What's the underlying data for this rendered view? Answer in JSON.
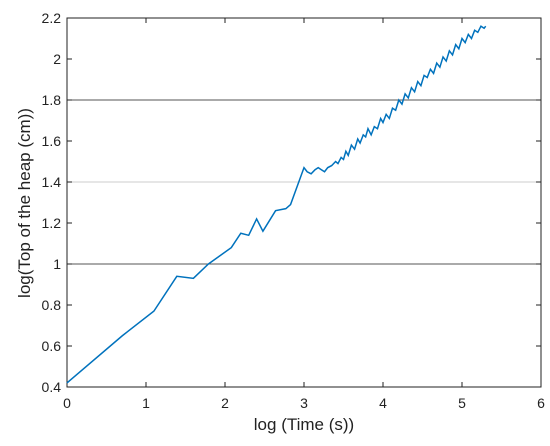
{
  "chart_data": {
    "type": "line",
    "x_label": "log (Time (s))",
    "y_label": "log(Top of the heap (cm))",
    "series": [
      {
        "color": "#0072bd",
        "x": [
          0,
          0.7,
          1.1,
          1.39,
          1.6,
          1.79,
          2.08,
          2.2,
          2.3,
          2.4,
          2.48,
          2.64,
          2.77,
          2.83,
          3.0,
          3.04,
          3.09,
          3.14,
          3.18,
          3.22,
          3.26,
          3.3,
          3.35,
          3.4,
          3.43,
          3.47,
          3.5,
          3.53,
          3.56,
          3.6,
          3.64,
          3.68,
          3.71,
          3.75,
          3.78,
          3.81,
          3.85,
          3.89,
          3.93,
          3.97,
          4.0,
          4.04,
          4.08,
          4.12,
          4.16,
          4.2,
          4.24,
          4.28,
          4.32,
          4.36,
          4.4,
          4.44,
          4.48,
          4.52,
          4.56,
          4.6,
          4.64,
          4.68,
          4.72,
          4.76,
          4.8,
          4.84,
          4.88,
          4.92,
          4.96,
          5.0,
          5.04,
          5.08,
          5.12,
          5.16,
          5.2,
          5.24,
          5.28,
          5.3
        ],
        "values": [
          0.42,
          0.65,
          0.77,
          0.94,
          0.93,
          1.0,
          1.08,
          1.15,
          1.14,
          1.22,
          1.16,
          1.26,
          1.27,
          1.29,
          1.47,
          1.45,
          1.44,
          1.46,
          1.47,
          1.46,
          1.45,
          1.47,
          1.48,
          1.5,
          1.49,
          1.52,
          1.51,
          1.55,
          1.53,
          1.58,
          1.56,
          1.61,
          1.59,
          1.63,
          1.62,
          1.66,
          1.63,
          1.67,
          1.66,
          1.71,
          1.69,
          1.73,
          1.71,
          1.76,
          1.75,
          1.8,
          1.78,
          1.83,
          1.81,
          1.86,
          1.84,
          1.89,
          1.87,
          1.92,
          1.91,
          1.95,
          1.93,
          1.98,
          1.96,
          2.01,
          1.99,
          2.04,
          2.02,
          2.07,
          2.05,
          2.1,
          2.08,
          2.12,
          2.1,
          2.14,
          2.13,
          2.16,
          2.15,
          2.16
        ]
      }
    ],
    "hlines": [
      {
        "value": 1.8,
        "color": "#555555"
      },
      {
        "value": 1.4,
        "color": "#cccccc"
      },
      {
        "value": 1.0,
        "color": "#555555"
      }
    ],
    "xlim": [
      0,
      6
    ],
    "xticks": [
      0,
      1,
      2,
      3,
      4,
      5,
      6
    ],
    "ylim": [
      0.4,
      2.2
    ],
    "yticks": [
      0.4,
      0.6,
      0.8,
      1,
      1.2,
      1.4,
      1.6,
      1.8,
      2,
      2.2
    ]
  }
}
